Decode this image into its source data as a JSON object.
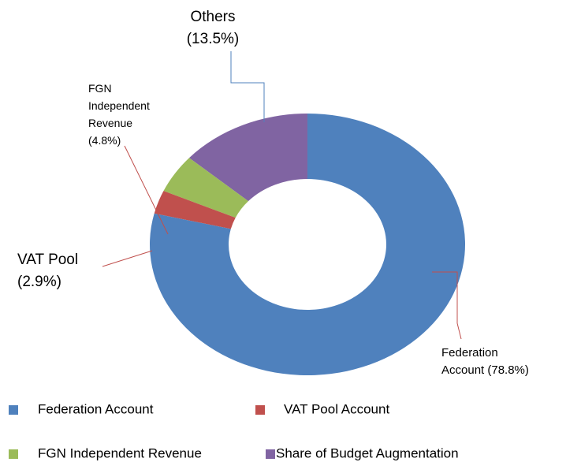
{
  "chart_data": {
    "type": "donut",
    "series": [
      {
        "name": "Federation Account",
        "color": "#4f81bd",
        "values": [
          78.8
        ],
        "value_labels": [
          "Federation\nAccount (78.8%)"
        ]
      },
      {
        "name": "VAT Pool Account",
        "color": "#c0504d",
        "values": [
          2.9
        ],
        "value_labels": [
          "VAT Pool\n(2.9%)"
        ]
      },
      {
        "name": "FGN Independent Revenue",
        "color": "#9bbb59",
        "values": [
          4.8
        ],
        "value_labels": [
          "FGN\nIndependent\nRevenue\n(4.8%)"
        ]
      },
      {
        "name": "Share of Budget Augmentation",
        "color": "#8064a2",
        "values": [
          13.5
        ],
        "value_labels": [
          "Others\n(13.5%)"
        ]
      }
    ],
    "legend": "bottom"
  }
}
